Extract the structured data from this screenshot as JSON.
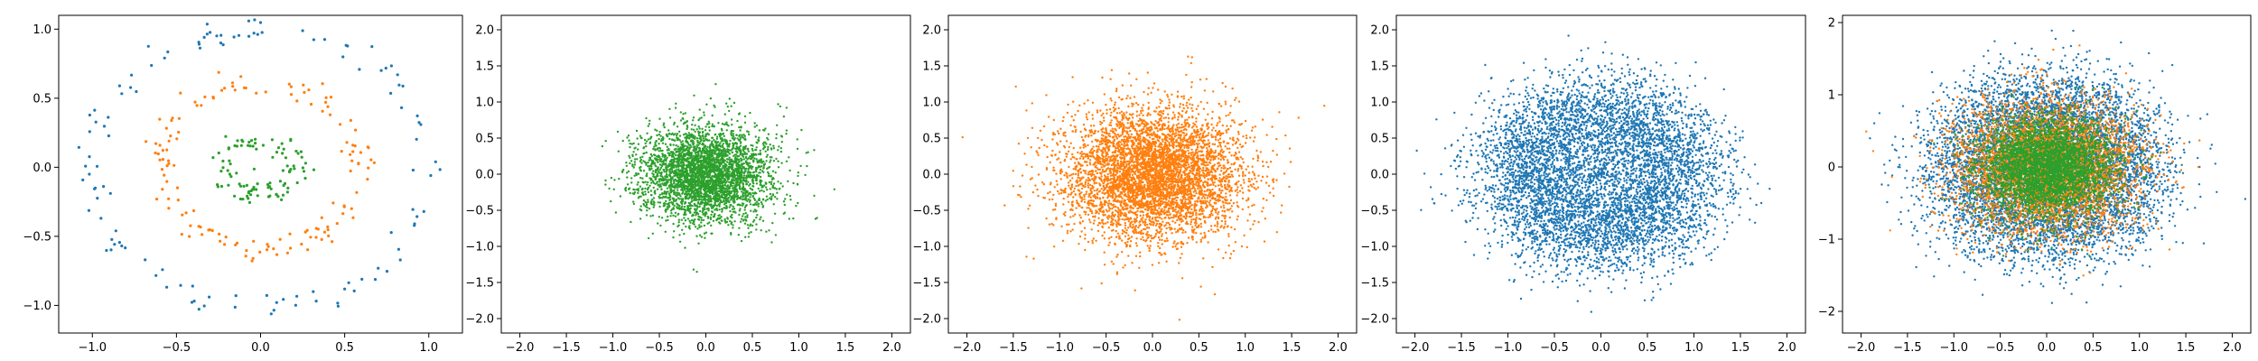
{
  "chart_data": [
    {
      "type": "scatter",
      "title": "",
      "xlabel": "",
      "ylabel": "",
      "xlim": [
        -1.2,
        1.2
      ],
      "ylim": [
        -1.2,
        1.1
      ],
      "xticks": [
        -1.0,
        -0.5,
        0.0,
        0.5,
        1.0
      ],
      "xtick_labels": [
        "−1.0",
        "−0.5",
        "0.0",
        "0.5",
        "1.0"
      ],
      "yticks": [
        -1.0,
        -0.5,
        0.0,
        0.5,
        1.0
      ],
      "ytick_labels": [
        "−1.0",
        "−0.5",
        "0.0",
        "0.5",
        "1.0"
      ],
      "grid": false,
      "series": [
        {
          "color": "#1f77b4",
          "shape": "ring",
          "center": [
            0,
            0
          ],
          "radius": 1.0,
          "spread": 0.05,
          "n": 120
        },
        {
          "color": "#ff7f0e",
          "shape": "ring",
          "center": [
            0,
            0
          ],
          "radius": 0.6,
          "spread": 0.05,
          "n": 140
        },
        {
          "color": "#2ca02c",
          "shape": "ring",
          "center": [
            0,
            0
          ],
          "radius": 0.2,
          "spread": 0.04,
          "n": 100
        }
      ]
    },
    {
      "type": "scatter",
      "title": "",
      "xlabel": "",
      "ylabel": "",
      "xlim": [
        -2.2,
        2.2
      ],
      "ylim": [
        -2.2,
        2.2
      ],
      "xticks": [
        -2.0,
        -1.5,
        -1.0,
        -0.5,
        0.0,
        0.5,
        1.0,
        1.5,
        2.0
      ],
      "xtick_labels": [
        "−2.0",
        "−1.5",
        "−1.0",
        "−0.5",
        "0.0",
        "0.5",
        "1.0",
        "1.5",
        "2.0"
      ],
      "yticks": [
        -2.0,
        -1.5,
        -1.0,
        -0.5,
        0.0,
        0.5,
        1.0,
        1.5,
        2.0
      ],
      "ytick_labels": [
        "−2.0",
        "−1.5",
        "−1.0",
        "−0.5",
        "0.0",
        "0.5",
        "1.0",
        "1.5",
        "2.0"
      ],
      "grid": false,
      "series": [
        {
          "color": "#2ca02c",
          "shape": "gaussian",
          "center": [
            0,
            0
          ],
          "sigma": [
            0.35,
            0.33
          ],
          "n": 3500
        }
      ]
    },
    {
      "type": "scatter",
      "title": "",
      "xlabel": "",
      "ylabel": "",
      "xlim": [
        -2.2,
        2.2
      ],
      "ylim": [
        -2.2,
        2.2
      ],
      "xticks": [
        -2.0,
        -1.5,
        -1.0,
        -0.5,
        0.0,
        0.5,
        1.0,
        1.5,
        2.0
      ],
      "xtick_labels": [
        "−2.0",
        "−1.5",
        "−1.0",
        "−0.5",
        "0.0",
        "0.5",
        "1.0",
        "1.5",
        "2.0"
      ],
      "yticks": [
        -2.0,
        -1.5,
        -1.0,
        -0.5,
        0.0,
        0.5,
        1.0,
        1.5,
        2.0
      ],
      "ytick_labels": [
        "−2.0",
        "−1.5",
        "−1.0",
        "−0.5",
        "0.0",
        "0.5",
        "1.0",
        "1.5",
        "2.0"
      ],
      "grid": false,
      "series": [
        {
          "color": "#ff7f0e",
          "shape": "gaussian",
          "center": [
            0,
            0
          ],
          "sigma": [
            0.48,
            0.45
          ],
          "n": 5000
        }
      ]
    },
    {
      "type": "scatter",
      "title": "",
      "xlabel": "",
      "ylabel": "",
      "xlim": [
        -2.2,
        2.2
      ],
      "ylim": [
        -2.2,
        2.2
      ],
      "xticks": [
        -2.0,
        -1.5,
        -1.0,
        -0.5,
        0.0,
        0.5,
        1.0,
        1.5,
        2.0
      ],
      "xtick_labels": [
        "−2.0",
        "−1.5",
        "−1.0",
        "−0.5",
        "0.0",
        "0.5",
        "1.0",
        "1.5",
        "2.0"
      ],
      "yticks": [
        -2.0,
        -1.5,
        -1.0,
        -0.5,
        0.0,
        0.5,
        1.0,
        1.5,
        2.0
      ],
      "ytick_labels": [
        "−2.0",
        "−1.5",
        "−1.0",
        "−0.5",
        "0.0",
        "0.5",
        "1.0",
        "1.5",
        "2.0"
      ],
      "grid": false,
      "series": [
        {
          "color": "#1f77b4",
          "shape": "ring",
          "center": [
            0,
            0
          ],
          "radius": 0.85,
          "spread": 0.35,
          "n": 6000
        }
      ]
    },
    {
      "type": "scatter",
      "title": "",
      "xlabel": "",
      "ylabel": "",
      "xlim": [
        -2.2,
        2.2
      ],
      "ylim": [
        -2.3,
        2.1
      ],
      "xticks": [
        -2.0,
        -1.5,
        -1.0,
        -0.5,
        0.0,
        0.5,
        1.0,
        1.5,
        2.0
      ],
      "xtick_labels": [
        "−2.0",
        "−1.5",
        "−1.0",
        "−0.5",
        "0.0",
        "0.5",
        "1.0",
        "1.5",
        "2.0"
      ],
      "yticks": [
        -2,
        -1,
        0,
        1,
        2
      ],
      "ytick_labels": [
        "−2",
        "−1",
        "0",
        "1",
        "2"
      ],
      "grid": false,
      "series": [
        {
          "color": "#1f77b4",
          "shape": "ring",
          "center": [
            0,
            0
          ],
          "radius": 0.85,
          "spread": 0.35,
          "n": 6000
        },
        {
          "color": "#ff7f0e",
          "shape": "gaussian",
          "center": [
            0,
            0
          ],
          "sigma": [
            0.48,
            0.45
          ],
          "n": 4500
        },
        {
          "color": "#2ca02c",
          "shape": "gaussian",
          "center": [
            0,
            0
          ],
          "sigma": [
            0.35,
            0.33
          ],
          "n": 3500
        }
      ]
    }
  ]
}
